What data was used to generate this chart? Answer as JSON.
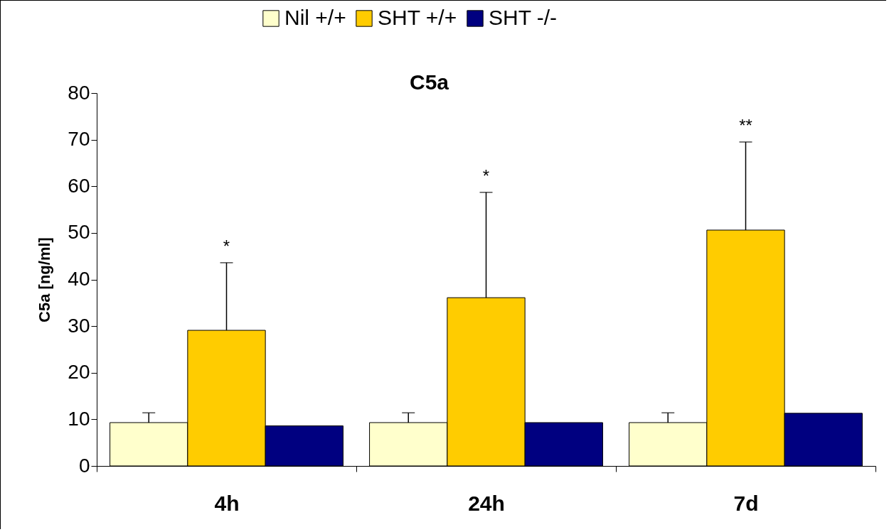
{
  "chart_data": {
    "type": "bar",
    "title": "C5a",
    "ylabel": "C5a [ng/ml]",
    "categories": [
      "4h",
      "24h",
      "7d"
    ],
    "series": [
      {
        "name": "Nil +/+",
        "color": "#ffffcc",
        "values": [
          9.3,
          9.3,
          9.3
        ],
        "errors": [
          [
            9.3,
            11.4
          ],
          [
            9.3,
            11.4
          ],
          [
            9.3,
            11.4
          ]
        ]
      },
      {
        "name": "SHT +/+",
        "color": "#ffcc00",
        "values": [
          29.1,
          36.1,
          50.6
        ],
        "errors": [
          [
            29.1,
            43.6
          ],
          [
            36.1,
            58.7
          ],
          [
            50.6,
            69.5
          ]
        ]
      },
      {
        "name": "SHT -/-",
        "color": "#000080",
        "values": [
          8.6,
          9.3,
          11.3
        ]
      }
    ],
    "ylim": [
      0,
      80
    ],
    "yticks": [
      0,
      10,
      20,
      30,
      40,
      50,
      60,
      70,
      80
    ],
    "grid": false,
    "legend": "top",
    "annotations": [
      {
        "text": "*",
        "x": "4h",
        "y": 43.6
      },
      {
        "text": "*",
        "x": "24h",
        "y": 58.7
      },
      {
        "text": "**",
        "x": "7d",
        "y": 69.5
      }
    ]
  }
}
